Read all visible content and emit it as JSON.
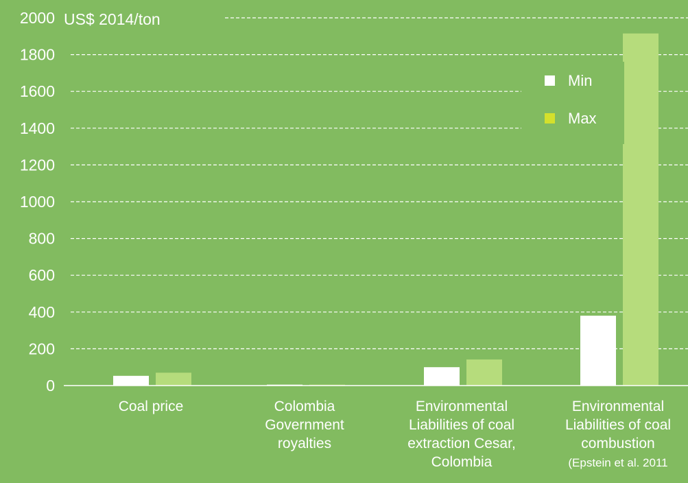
{
  "chart_data": {
    "type": "bar",
    "unit_label": "US$ 2014/ton",
    "categories": [
      {
        "lines": [
          "Coal price"
        ],
        "note": ""
      },
      {
        "lines": [
          "Colombia",
          "Government",
          "royalties"
        ],
        "note": ""
      },
      {
        "lines": [
          "Environmental",
          "Liabilities of coal",
          "extraction Cesar,",
          "Colombia"
        ],
        "note": ""
      },
      {
        "lines": [
          "Environmental",
          "Liabilities of coal",
          "combustion"
        ],
        "note": "(Epstein et al. 2011"
      }
    ],
    "series": [
      {
        "name": "Min",
        "color": "#ffffff",
        "values": [
          53,
          5,
          100,
          380
        ]
      },
      {
        "name": "Max",
        "color": "#b6dc7c",
        "values": [
          70,
          5,
          142,
          1915
        ]
      }
    ],
    "y_ticks": [
      "0",
      "200",
      "400",
      "600",
      "800",
      "1000",
      "1200",
      "1400",
      "1600",
      "1800",
      "2000"
    ],
    "ylim": [
      0,
      2000
    ],
    "grid": true,
    "legend_position": "top-right",
    "legend_marker_colors": [
      "#ffffff",
      "#d4e02c"
    ]
  },
  "colors": {
    "background": "#82bb60",
    "text": "#ffffff",
    "gridline": "#ffffff"
  }
}
